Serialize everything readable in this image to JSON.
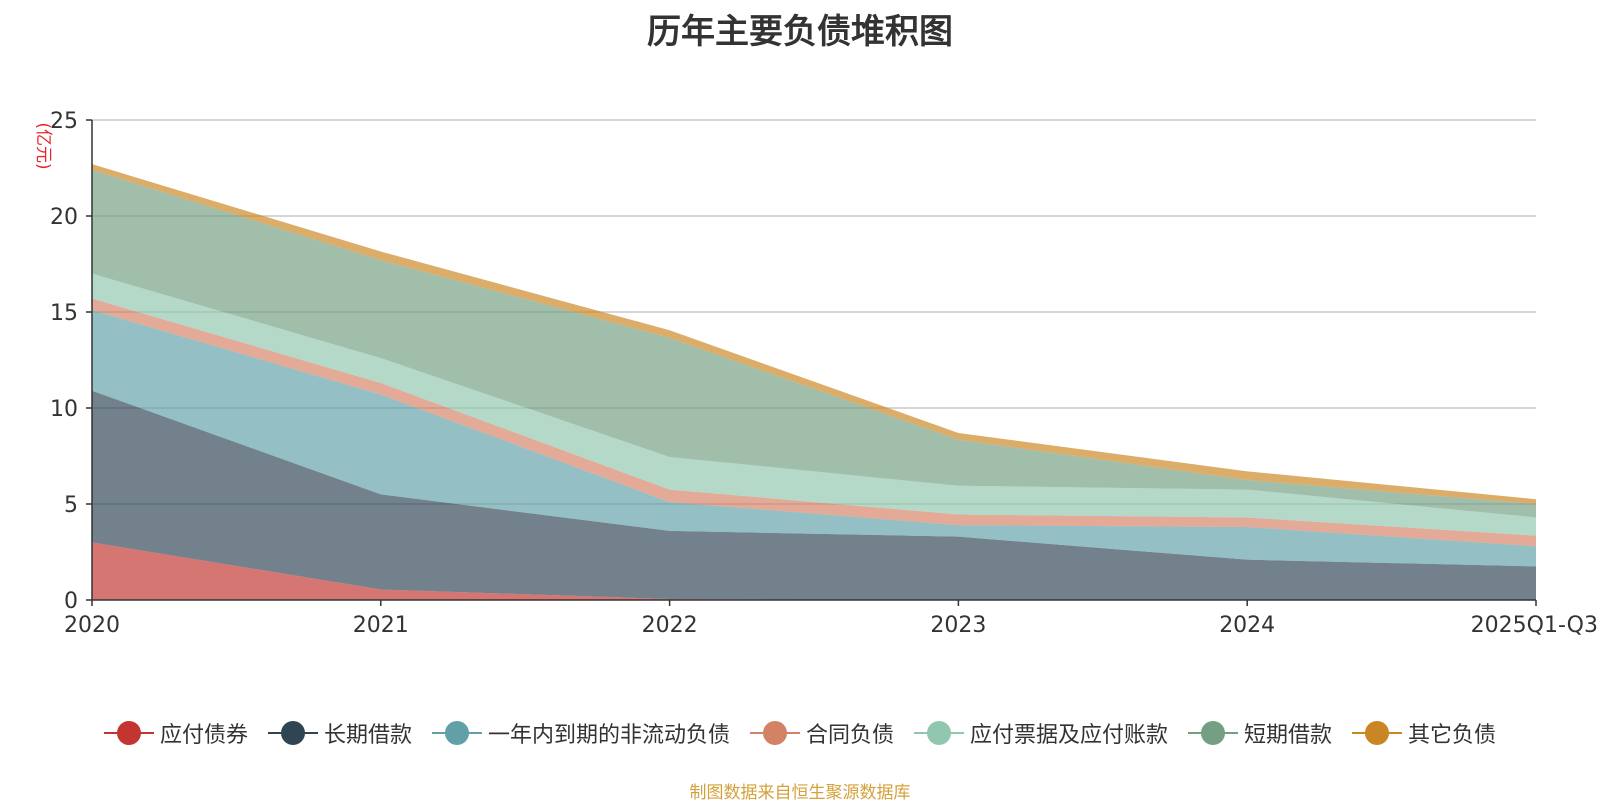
{
  "chart_data": {
    "type": "area",
    "stacked": true,
    "title": "历年主要负债堆积图",
    "ylabel": "(亿元)",
    "xlabel": "",
    "ylim": [
      0,
      25
    ],
    "yticks": [
      0,
      5,
      10,
      15,
      20,
      25
    ],
    "categories": [
      "2020",
      "2021",
      "2022",
      "2023",
      "2024",
      "2025Q1-Q3"
    ],
    "grid": true,
    "legend_position": "bottom-center",
    "series": [
      {
        "name": "应付债券",
        "color": "#c23531",
        "values": [
          3.0,
          0.55,
          0.05,
          0.0,
          0.0,
          0.0
        ]
      },
      {
        "name": "长期借款",
        "color": "#2f4554",
        "values": [
          7.9,
          4.95,
          3.55,
          3.3,
          2.1,
          1.75
        ]
      },
      {
        "name": "一年内到期的非流动负债",
        "color": "#61a0a8",
        "values": [
          4.2,
          5.2,
          1.5,
          0.6,
          1.7,
          1.05
        ]
      },
      {
        "name": "合同负债",
        "color": "#d48265",
        "values": [
          0.6,
          0.6,
          0.65,
          0.55,
          0.5,
          0.55
        ]
      },
      {
        "name": "应付票据及应付账款",
        "color": "#91c7ae",
        "values": [
          1.3,
          1.3,
          1.7,
          1.5,
          1.45,
          0.95
        ]
      },
      {
        "name": "短期借款",
        "color": "#749f83",
        "values": [
          5.4,
          5.1,
          6.2,
          2.4,
          0.5,
          0.7
        ]
      },
      {
        "name": "其它负债",
        "color": "#ca8622",
        "values": [
          0.3,
          0.45,
          0.4,
          0.35,
          0.45,
          0.25
        ]
      }
    ]
  },
  "footer": {
    "source": "制图数据来自恒生聚源数据库"
  }
}
